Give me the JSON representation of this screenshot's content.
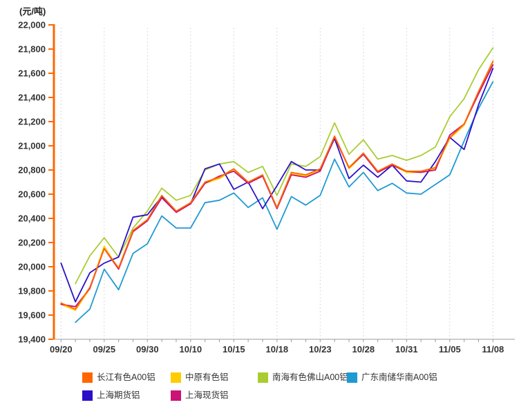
{
  "title_unit": "(元/吨)",
  "chart_data": {
    "type": "line",
    "title": "",
    "ylabel": "元/吨",
    "xlabel": "",
    "ylim": [
      19400,
      22000
    ],
    "y_step": 200,
    "num_points": 31,
    "x_tick_every": 3,
    "x_tick_labels": [
      "09/20",
      "09/25",
      "09/30",
      "10/10",
      "10/15",
      "10/18",
      "10/23",
      "10/28",
      "10/31",
      "11/05",
      "11/08"
    ],
    "grid": "vertical-dashed",
    "legend_position": "bottom",
    "axis_color": "#FF6600",
    "grid_color": "#D9D9D9",
    "xaxis_color": "#999999",
    "label_color": "#333333",
    "series": [
      {
        "name": "长江有色A00铝",
        "color": "#FF6600",
        "values": [
          19700,
          19650,
          19830,
          20150,
          19990,
          20300,
          20390,
          20590,
          20460,
          20530,
          20700,
          20740,
          20810,
          20700,
          20760,
          20490,
          20780,
          20760,
          20810,
          21080,
          20820,
          20940,
          20790,
          20850,
          20790,
          20790,
          20820,
          21070,
          21180,
          21450,
          21700
        ]
      },
      {
        "name": "中原有色铝",
        "color": "#FFCC00",
        "values": [
          19690,
          19640,
          19820,
          20170,
          19980,
          20290,
          20380,
          20580,
          20450,
          20520,
          20690,
          20730,
          20800,
          20690,
          20750,
          20480,
          20770,
          20750,
          20800,
          21080,
          20810,
          20930,
          20780,
          20840,
          20780,
          20780,
          20810,
          21060,
          21170,
          21440,
          21690
        ]
      },
      {
        "name": "南海有色佛山A00铝",
        "color": "#AACC33",
        "values": [
          null,
          19860,
          20090,
          20240,
          20080,
          20320,
          20460,
          20650,
          20550,
          20590,
          20800,
          20850,
          20870,
          20780,
          20830,
          20590,
          20850,
          20830,
          20910,
          21190,
          20930,
          21050,
          20890,
          20920,
          20880,
          20920,
          20990,
          21240,
          21390,
          21630,
          21810
        ]
      },
      {
        "name": "广东南储华南A00铝",
        "color": "#1E9AD2",
        "values": [
          null,
          19540,
          19650,
          19980,
          19810,
          20110,
          20190,
          20420,
          20320,
          20320,
          20530,
          20550,
          20610,
          20490,
          20570,
          20310,
          20580,
          20510,
          20590,
          20890,
          20660,
          20780,
          20630,
          20690,
          20610,
          20600,
          20680,
          20760,
          21040,
          21310,
          21530
        ]
      },
      {
        "name": "上海期货铝",
        "color": "#2B10C8",
        "values": [
          20030,
          19710,
          19950,
          20030,
          20080,
          20410,
          20430,
          20580,
          20460,
          20520,
          20810,
          20850,
          20640,
          20700,
          20480,
          20670,
          20870,
          20800,
          20800,
          21060,
          20730,
          20840,
          20740,
          20840,
          20710,
          20700,
          20870,
          21070,
          20970,
          21340,
          21640
        ]
      },
      {
        "name": "上海现货铝",
        "color": "#CC1177",
        "values": [
          19690,
          19670,
          19820,
          20150,
          19980,
          20290,
          20380,
          20570,
          20450,
          20520,
          20690,
          20750,
          20790,
          20690,
          20750,
          20480,
          20760,
          20740,
          20790,
          21070,
          20820,
          20930,
          20780,
          20840,
          20790,
          20780,
          20800,
          21090,
          21180,
          21430,
          21670
        ]
      }
    ]
  }
}
